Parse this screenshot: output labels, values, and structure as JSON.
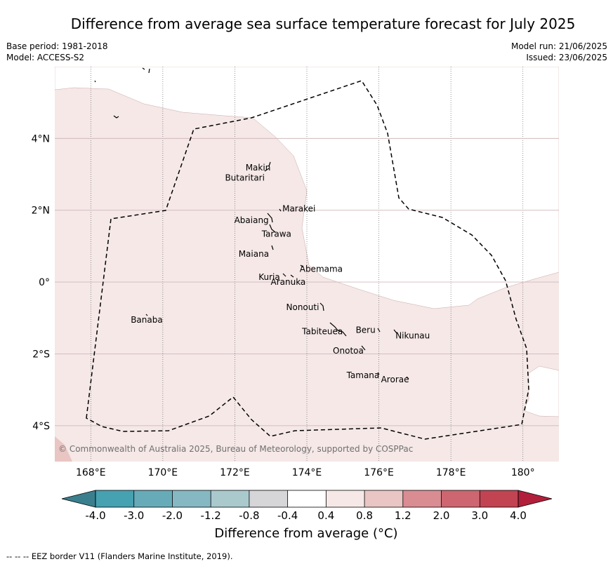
{
  "title": "Difference from average sea surface temperature forecast for July 2025",
  "meta": {
    "base_period": "Base period: 1981-2018",
    "model": "Model: ACCESS-S2",
    "model_run": "Model run: 21/06/2025",
    "issued": "Issued: 23/06/2025"
  },
  "map": {
    "lon_labels": [
      "168°E",
      "170°E",
      "172°E",
      "174°E",
      "176°E",
      "178°E",
      "180°"
    ],
    "lat_labels": [
      "4°N",
      "2°N",
      "0°",
      "2°S",
      "4°S"
    ],
    "copyright": "© Commonwealth of Australia 2025, Bureau of Meteorology, supported by COSPPac",
    "islands": [
      {
        "name": "Makin"
      },
      {
        "name": "Butaritari"
      },
      {
        "name": "Marakei"
      },
      {
        "name": "Abaiang"
      },
      {
        "name": "Tarawa"
      },
      {
        "name": "Maiana"
      },
      {
        "name": "Abemama"
      },
      {
        "name": "Kuria"
      },
      {
        "name": "Aranuka"
      },
      {
        "name": "Nonouti"
      },
      {
        "name": "Banaba"
      },
      {
        "name": "Beru"
      },
      {
        "name": "Nikunau"
      },
      {
        "name": "Tabiteuea"
      },
      {
        "name": "Onotoa"
      },
      {
        "name": "Tamana"
      },
      {
        "name": "Arorae"
      }
    ]
  },
  "colorbar": {
    "ticks": [
      "-4.0",
      "-3.0",
      "-2.0",
      "-1.2",
      "-0.8",
      "-0.4",
      "0.4",
      "0.8",
      "1.2",
      "2.0",
      "3.0",
      "4.0"
    ],
    "colors": [
      "#3a7f8e",
      "#46a1b1",
      "#67abb8",
      "#86b8c3",
      "#a9c9cd",
      "#d6d6d8",
      "#ffffff",
      "#f5e8e7",
      "#e9c6c3",
      "#d98c92",
      "#cd6670",
      "#c24453",
      "#b21f3a"
    ],
    "label": "Difference from average (°C)"
  },
  "footnote": "--  --  -- EEZ border V11 (Flanders Marine Institute, 2019).",
  "chart_data": {
    "type": "heatmap",
    "title": "Difference from average sea surface temperature forecast for July 2025",
    "xlabel": "",
    "ylabel": "",
    "xlim": [
      167,
      181
    ],
    "ylim": [
      -5,
      6
    ],
    "lon_ticks": [
      168,
      170,
      172,
      174,
      176,
      178,
      180
    ],
    "lat_ticks": [
      4,
      2,
      0,
      -2,
      -4
    ],
    "color_levels": [
      -4.0,
      -3.0,
      -2.0,
      -1.2,
      -0.8,
      -0.4,
      0.4,
      0.8,
      1.2,
      2.0,
      3.0,
      4.0
    ],
    "dominant_category": "0.4 to 0.8",
    "islands": [
      {
        "name": "Makin",
        "lon": 173.0,
        "lat": 3.3
      },
      {
        "name": "Butaritari",
        "lon": 172.8,
        "lat": 3.1
      },
      {
        "name": "Marakei",
        "lon": 173.3,
        "lat": 2.0
      },
      {
        "name": "Abaiang",
        "lon": 172.9,
        "lat": 1.8
      },
      {
        "name": "Tarawa",
        "lon": 173.0,
        "lat": 1.4
      },
      {
        "name": "Maiana",
        "lon": 173.0,
        "lat": 0.9
      },
      {
        "name": "Abemama",
        "lon": 173.8,
        "lat": 0.4
      },
      {
        "name": "Kuria",
        "lon": 173.4,
        "lat": 0.2
      },
      {
        "name": "Aranuka",
        "lon": 173.6,
        "lat": 0.2
      },
      {
        "name": "Nonouti",
        "lon": 174.4,
        "lat": -0.6
      },
      {
        "name": "Banaba",
        "lon": 169.5,
        "lat": -0.9
      },
      {
        "name": "Beru",
        "lon": 176.0,
        "lat": -1.3
      },
      {
        "name": "Nikunau",
        "lon": 176.5,
        "lat": -1.4
      },
      {
        "name": "Tabiteuea",
        "lon": 174.9,
        "lat": -1.3
      },
      {
        "name": "Onotoa",
        "lon": 175.6,
        "lat": -1.8
      },
      {
        "name": "Tamana",
        "lon": 176.0,
        "lat": -2.5
      },
      {
        "name": "Arorae",
        "lon": 176.8,
        "lat": -2.6
      }
    ]
  }
}
